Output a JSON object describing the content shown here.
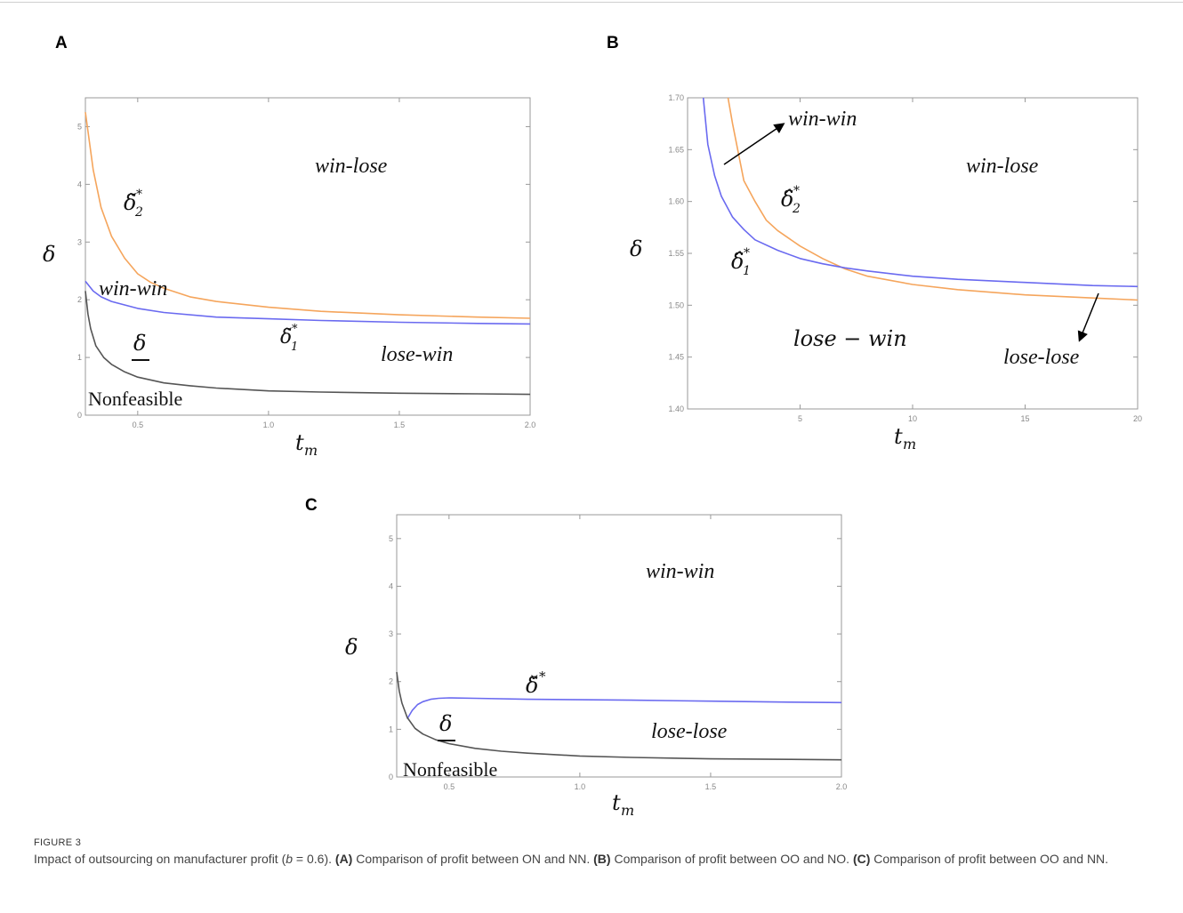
{
  "chart_data": [
    {
      "panel": "A",
      "type": "line",
      "xlabel": "t",
      "xlabel_sub": "m",
      "ylabel": "δ",
      "xlim": [
        0.3,
        2.0
      ],
      "ylim": [
        0,
        5.5
      ],
      "xticks": [
        "0.5",
        "1.0",
        "1.5",
        "2.0"
      ],
      "yticks": [
        "0",
        "1",
        "2",
        "3",
        "4",
        "5"
      ],
      "series": [
        {
          "name": "δ̃₂*",
          "color": "#f5a55c",
          "x": [
            0.3,
            0.33,
            0.36,
            0.4,
            0.45,
            0.5,
            0.55,
            0.6,
            0.7,
            0.8,
            1.0,
            1.2,
            1.5,
            1.8,
            2.0
          ],
          "y": [
            5.25,
            4.25,
            3.6,
            3.1,
            2.72,
            2.45,
            2.3,
            2.2,
            2.05,
            1.97,
            1.87,
            1.8,
            1.74,
            1.7,
            1.68
          ]
        },
        {
          "name": "δ̃₁*",
          "color": "#6a6af0",
          "x": [
            0.3,
            0.33,
            0.36,
            0.4,
            0.5,
            0.6,
            0.8,
            1.0,
            1.2,
            1.5,
            1.8,
            2.0
          ],
          "y": [
            2.32,
            2.15,
            2.05,
            1.97,
            1.85,
            1.78,
            1.7,
            1.67,
            1.64,
            1.61,
            1.59,
            1.58
          ]
        },
        {
          "name": "δ",
          "color": "#555555",
          "x": [
            0.3,
            0.31,
            0.32,
            0.34,
            0.37,
            0.4,
            0.45,
            0.5,
            0.6,
            0.7,
            0.8,
            1.0,
            1.2,
            1.5,
            1.8,
            2.0
          ],
          "y": [
            2.15,
            1.75,
            1.5,
            1.2,
            1.0,
            0.88,
            0.75,
            0.66,
            0.56,
            0.51,
            0.47,
            0.42,
            0.4,
            0.38,
            0.37,
            0.36
          ]
        }
      ],
      "annotations": [
        "win-lose",
        "win-win",
        "lose-win",
        "Nonfeasible"
      ]
    },
    {
      "panel": "B",
      "type": "line",
      "xlabel": "t",
      "xlabel_sub": "m",
      "ylabel": "δ",
      "xlim": [
        0,
        20
      ],
      "ylim": [
        1.4,
        1.7
      ],
      "xticks": [
        "5",
        "10",
        "15",
        "20"
      ],
      "yticks": [
        "1.40",
        "1.45",
        "1.50",
        "1.55",
        "1.60",
        "1.65",
        "1.70"
      ],
      "series": [
        {
          "name": "δ̂₂*",
          "color": "#f5a55c",
          "x": [
            1.8,
            2.0,
            2.5,
            3.0,
            3.5,
            4.0,
            5.0,
            6.0,
            7.0,
            8.0,
            10.0,
            12.0,
            15.0,
            18.0,
            20.0
          ],
          "y": [
            1.7,
            1.675,
            1.62,
            1.6,
            1.582,
            1.572,
            1.557,
            1.545,
            1.535,
            1.528,
            1.52,
            1.515,
            1.51,
            1.507,
            1.505
          ]
        },
        {
          "name": "δ̂₁*",
          "color": "#6a6af0",
          "x": [
            0.7,
            0.9,
            1.2,
            1.5,
            2.0,
            2.5,
            3.0,
            4.0,
            5.0,
            6.0,
            7.0,
            8.0,
            10.0,
            12.0,
            15.0,
            18.0,
            20.0
          ],
          "y": [
            1.7,
            1.655,
            1.625,
            1.605,
            1.585,
            1.573,
            1.563,
            1.553,
            1.545,
            1.54,
            1.536,
            1.533,
            1.528,
            1.525,
            1.522,
            1.519,
            1.518
          ]
        }
      ],
      "annotations": [
        "win-win",
        "win-lose",
        "lose − win",
        "lose-lose"
      ]
    },
    {
      "panel": "C",
      "type": "line",
      "xlabel": "t",
      "xlabel_sub": "m",
      "ylabel": "δ",
      "xlim": [
        0.3,
        2.0
      ],
      "ylim": [
        0,
        5.5
      ],
      "xticks": [
        "0.5",
        "1.0",
        "1.5",
        "2.0"
      ],
      "yticks": [
        "0",
        "1",
        "2",
        "3",
        "4",
        "5"
      ],
      "series": [
        {
          "name": "δ̌*",
          "color": "#6a6af0",
          "x": [
            0.34,
            0.36,
            0.38,
            0.4,
            0.43,
            0.46,
            0.5,
            0.6,
            0.8,
            1.0,
            1.2,
            1.5,
            1.8,
            2.0
          ],
          "y": [
            1.22,
            1.4,
            1.52,
            1.58,
            1.63,
            1.65,
            1.66,
            1.65,
            1.63,
            1.62,
            1.61,
            1.59,
            1.57,
            1.56
          ]
        },
        {
          "name": "δ",
          "color": "#555555",
          "x": [
            0.3,
            0.31,
            0.32,
            0.34,
            0.37,
            0.4,
            0.45,
            0.5,
            0.6,
            0.7,
            0.8,
            1.0,
            1.2,
            1.5,
            1.8,
            2.0
          ],
          "y": [
            2.2,
            1.8,
            1.55,
            1.25,
            1.02,
            0.9,
            0.78,
            0.7,
            0.6,
            0.54,
            0.5,
            0.44,
            0.41,
            0.38,
            0.37,
            0.36
          ]
        }
      ],
      "annotations": [
        "win-win",
        "lose-lose",
        "Nonfeasible"
      ]
    }
  ],
  "panels": {
    "a": {
      "letter": "A",
      "win_lose": "win-lose",
      "win_win": "win-win",
      "lose_win": "lose-win",
      "nonfeasible": "Nonfeasible",
      "curve_upper": "δ̃",
      "curve_upper_sub": "2",
      "curve_mid": "δ̃",
      "curve_mid_sub": "1",
      "curve_low": "δ"
    },
    "b": {
      "letter": "B",
      "win_win": "win-win",
      "win_lose": "win-lose",
      "lose_win": "lose − win",
      "lose_lose": "lose-lose",
      "curve_upper": "δ̂",
      "curve_upper_sub": "2",
      "curve_mid": "δ̂",
      "curve_mid_sub": "1"
    },
    "c": {
      "letter": "C",
      "win_win": "win-win",
      "lose_lose": "lose-lose",
      "nonfeasible": "Nonfeasible",
      "curve_mid": "δ̌",
      "curve_low": "δ"
    }
  },
  "axis": {
    "y_symbol": "δ",
    "x_symbol": "t",
    "x_sub": "m",
    "star": "*"
  },
  "caption": {
    "label": "FIGURE 3",
    "part1": "Impact of outsourcing on manufacturer profit (",
    "b_var": "b",
    "part2": " = 0.6). ",
    "a_tag": "(A)",
    "a_text": " Comparison of profit between ON and NN. ",
    "b_tag": "(B)",
    "b_text": " Comparison of profit between OO and NO. ",
    "c_tag": "(C)",
    "c_text": " Comparison of profit between OO and NN."
  }
}
